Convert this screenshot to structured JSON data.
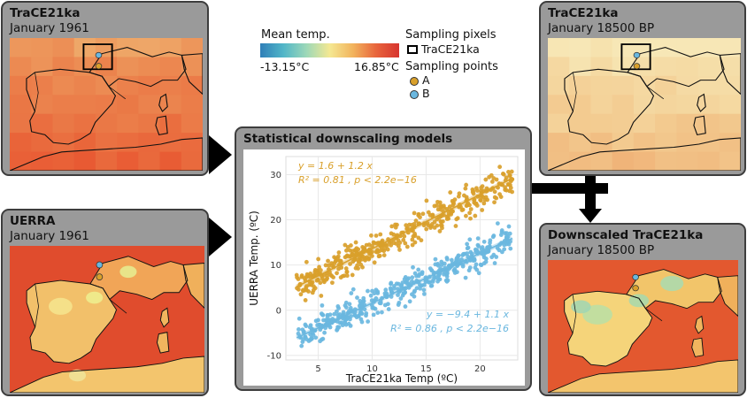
{
  "panels": {
    "trace_1961": {
      "title": "TraCE21ka",
      "subtitle": "January 1961"
    },
    "uerra_1961": {
      "title": "UERRA",
      "subtitle": "January 1961"
    },
    "trace_18500": {
      "title": "TraCE21ka",
      "subtitle": "January 18500 BP"
    },
    "downscaled": {
      "title": "Downscaled TraCE21ka",
      "subtitle": "January 18500 BP"
    },
    "models": {
      "title": "Statistical downscaling models"
    }
  },
  "legend": {
    "colorbar_title": "Mean temp.",
    "min_label": "-13.15°C",
    "max_label": "16.85°C",
    "sampling_pixels_title": "Sampling pixels",
    "sampling_pixels_item": "TraCE21ka",
    "sampling_points_title": "Sampling points",
    "point_a": "A",
    "point_b": "B"
  },
  "colors": {
    "point_a": "#d9a02b",
    "point_b": "#6ab7df",
    "panel_bg": "#9a9a9a",
    "arrow": "#000000"
  },
  "chart_data": {
    "type": "scatter",
    "xlabel": "TraCE21ka Temp (ºC)",
    "ylabel": "UERRA Temp. (ºC)",
    "xlim": [
      2,
      23.5
    ],
    "ylim": [
      -11,
      34
    ],
    "xticks": [
      "5",
      "10",
      "15",
      "20"
    ],
    "yticks": [
      "-10",
      "0",
      "10",
      "20",
      "30"
    ],
    "grid": true,
    "series": [
      {
        "name": "A",
        "color": "#d9a02b",
        "intercept": 1.6,
        "slope": 1.2,
        "eq_text": "y = 1.6 + 1.2 x",
        "r2_text": "R² = 0.81 , p < 2.2e−16",
        "x_range": [
          3,
          23
        ],
        "residual_sd": 2.8,
        "n": 420
      },
      {
        "name": "B",
        "color": "#6ab7df",
        "intercept": -9.4,
        "slope": 1.1,
        "eq_text": "y = −9.4 + 1.1 x",
        "r2_text": "R² = 0.86 , p < 2.2e−16",
        "x_range": [
          3,
          23
        ],
        "residual_sd": 2.5,
        "n": 420
      }
    ]
  }
}
